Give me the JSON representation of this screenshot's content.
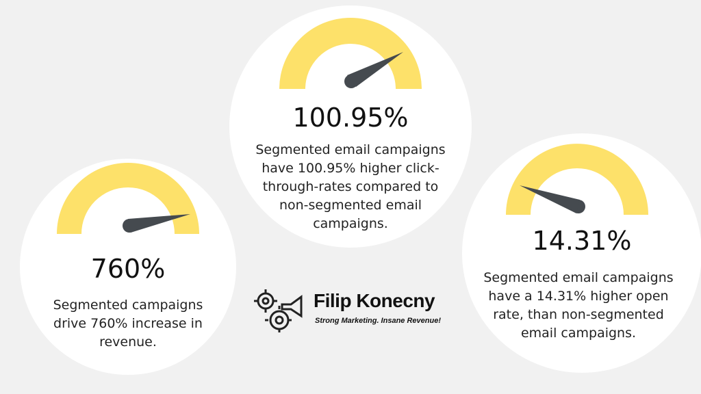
{
  "stats": [
    {
      "value": "100.95%",
      "description": "Segmented email campaigns have 100.95% higher click-through-rates compared to non-segmented email campaigns."
    },
    {
      "value": "760%",
      "description": "Segmented campaigns drive 760% increase in revenue."
    },
    {
      "value": "14.31%",
      "description": "Segmented email campaigns have a 14.31% higher open rate, than non-segmented email campaigns."
    }
  ],
  "brand": {
    "name": "Filip Konecny",
    "tagline": "Strong Marketing. Insane Revenue!"
  }
}
